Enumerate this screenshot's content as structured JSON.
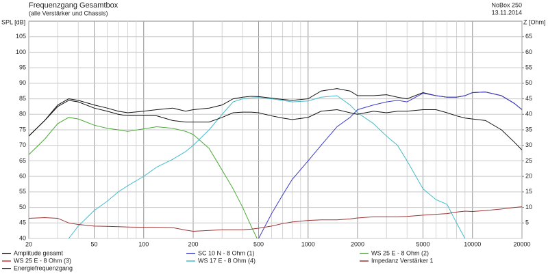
{
  "chart_data": {
    "type": "line",
    "title": "Frequenzgang Gesamtbox",
    "subtitle": "(alle Verstärker und Chassis)",
    "project": "NoBox 250",
    "date": "13.11.2014",
    "y_label": "SPL [dB]",
    "y2_label": "Z [Ohm]",
    "xscale": "log",
    "grid": true,
    "xlim": [
      20,
      20000
    ],
    "xticks": [
      20,
      50,
      100,
      200,
      500,
      1000,
      2000,
      5000,
      10000,
      20000
    ],
    "ylim": [
      40,
      110
    ],
    "yticks": [
      40,
      45,
      50,
      55,
      60,
      65,
      70,
      75,
      80,
      85,
      90,
      95,
      100,
      105
    ],
    "y2lim": [
      0,
      70
    ],
    "y2ticks": [
      5,
      10,
      15,
      20,
      25,
      30,
      35,
      40,
      45,
      50,
      55,
      60,
      65
    ],
    "x": [
      20,
      25,
      30,
      35,
      40,
      50,
      60,
      70,
      80,
      100,
      120,
      150,
      180,
      200,
      250,
      300,
      350,
      400,
      450,
      500,
      600,
      700,
      800,
      1000,
      1200,
      1500,
      1800,
      2000,
      2500,
      3000,
      3500,
      4000,
      5000,
      6000,
      7000,
      8000,
      9000,
      10000,
      12000,
      15000,
      18000,
      20000
    ],
    "series": [
      {
        "name": "Amplitude gesamt",
        "color": "#111111",
        "values": [
          73,
          78,
          83,
          85,
          84.5,
          83,
          82,
          81,
          80.5,
          81,
          81.5,
          82,
          81,
          81.5,
          82,
          83,
          85,
          85.5,
          85.8,
          85.7,
          85.2,
          84.8,
          84.5,
          85,
          87.5,
          88.3,
          87.5,
          86,
          86,
          86.3,
          85.5,
          85,
          87,
          86,
          85.5,
          85.5,
          86,
          87,
          87.2,
          86,
          83.5,
          81.5
        ]
      },
      {
        "name": "SC 10 N - 8 Ohm (1)",
        "color": "#3a3ac8",
        "values": [
          null,
          null,
          null,
          null,
          null,
          null,
          null,
          null,
          null,
          null,
          null,
          null,
          null,
          null,
          null,
          null,
          null,
          null,
          null,
          40,
          48,
          54,
          59,
          65,
          70,
          76,
          79,
          81.5,
          83,
          84,
          84.5,
          84,
          86.8,
          86,
          85.5,
          85.5,
          86,
          87,
          87.2,
          86,
          83.5,
          81.5
        ]
      },
      {
        "name": "WS 25 E - 8 Ohm (2)",
        "color": "#4aaa33",
        "values": [
          67,
          72,
          77,
          79,
          78.5,
          76.5,
          75.5,
          75,
          74.5,
          75.3,
          76,
          75.5,
          74.5,
          73.5,
          69,
          62,
          56,
          50,
          44,
          39,
          null,
          null,
          null,
          null,
          null,
          null,
          null,
          null,
          null,
          null,
          null,
          null,
          null,
          null,
          null,
          null,
          null,
          null,
          null,
          null,
          null,
          null
        ]
      },
      {
        "name": "WS 25 E - 8 Ohm (3)",
        "color": "#cc3333",
        "values": [
          null,
          null,
          null,
          null,
          null,
          null,
          null,
          null,
          null,
          null,
          null,
          null,
          null,
          null,
          null,
          null,
          null,
          null,
          null,
          null,
          null,
          null,
          null,
          null,
          null,
          null,
          null,
          null,
          null,
          null,
          null,
          null,
          null,
          null,
          null,
          null,
          null,
          null,
          null,
          null,
          null,
          null
        ]
      },
      {
        "name": "WS 17 E - 8 Ohm  (4)",
        "color": "#44bbcc",
        "values": [
          null,
          null,
          null,
          40,
          44,
          49,
          52,
          55,
          57,
          60,
          63,
          65.5,
          68,
          70,
          75,
          80,
          84,
          85,
          85.3,
          85.4,
          85,
          84.5,
          84,
          84.3,
          85.5,
          86,
          83,
          80.5,
          77,
          73,
          70,
          65,
          56,
          52.5,
          51,
          45,
          40,
          null,
          null,
          null,
          null,
          null
        ]
      },
      {
        "name": "Impedanz Verstärker 1",
        "color": "#993333",
        "axis": "y2",
        "values": [
          6.5,
          6.7,
          6.5,
          5,
          4.5,
          4,
          3.9,
          3.8,
          3.7,
          3.6,
          3.6,
          3.5,
          2.7,
          2.3,
          2.6,
          2.8,
          2.8,
          2.8,
          3,
          3.3,
          4,
          4.8,
          5.3,
          5.8,
          6,
          6,
          6.3,
          6.6,
          7,
          7,
          7,
          7.1,
          7.5,
          7.8,
          8,
          8.5,
          8.8,
          8.7,
          9,
          9.5,
          10,
          10.2
        ]
      },
      {
        "name": "Energiefrequenzgang",
        "color": "#111111",
        "values": [
          73,
          78,
          82.5,
          84.5,
          84,
          82,
          81,
          80,
          79.5,
          79.5,
          79.5,
          78,
          77.5,
          77.5,
          77.5,
          79,
          80.5,
          80.7,
          80.7,
          80.5,
          79.5,
          78.8,
          78.3,
          79,
          81,
          81.5,
          80.5,
          80,
          81,
          80.5,
          81,
          81,
          81.5,
          81.5,
          80.5,
          79.5,
          78.8,
          78.5,
          78,
          75,
          71,
          68.5
        ]
      }
    ]
  }
}
